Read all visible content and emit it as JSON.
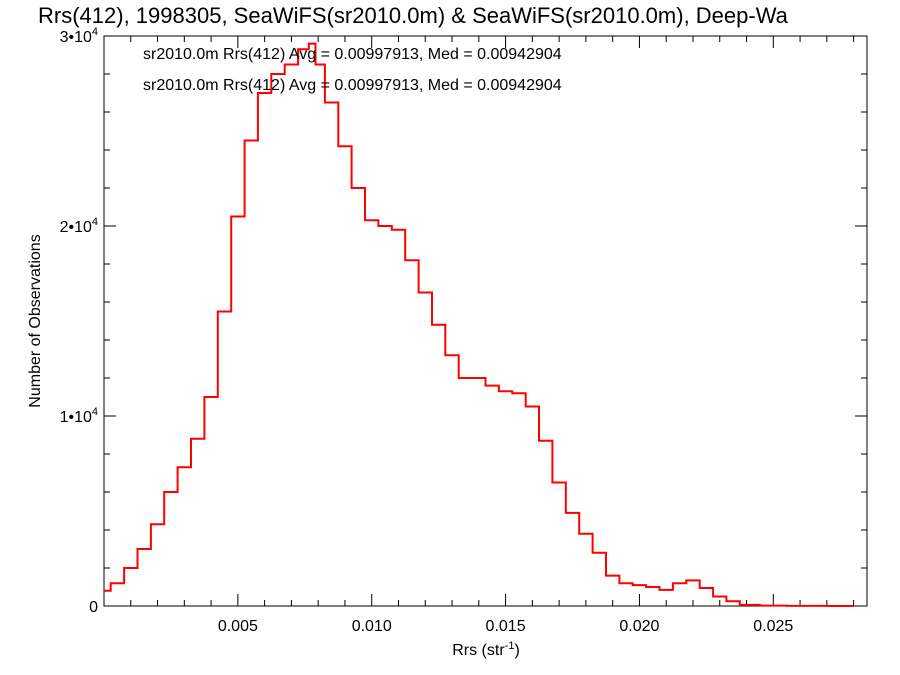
{
  "chart_data": {
    "type": "line",
    "title": "Rrs(412), 1998305, SeaWiFS(sr2010.0m) & SeaWiFS(sr2010.0m), Deep-Wa",
    "xlabel": "Rrs (str",
    "xlabel_sup": "-1",
    "xlabel_end": ")",
    "ylabel": "Number of Observations",
    "xlim": [
      0,
      0.0285
    ],
    "ylim": [
      0,
      30000
    ],
    "xticks": [
      {
        "value": 0.005,
        "label": "0.005"
      },
      {
        "value": 0.01,
        "label": "0.010"
      },
      {
        "value": 0.015,
        "label": "0.015"
      },
      {
        "value": 0.02,
        "label": "0.020"
      },
      {
        "value": 0.025,
        "label": "0.025"
      }
    ],
    "yticks": [
      {
        "value": 0,
        "base": "0",
        "exp": ""
      },
      {
        "value": 10000,
        "base": "1•10",
        "exp": "4"
      },
      {
        "value": 20000,
        "base": "2•10",
        "exp": "4"
      },
      {
        "value": 30000,
        "base": "3•10",
        "exp": "4"
      }
    ],
    "legend": [
      {
        "text": "sr2010.0m Rrs(412) Avg = 0.00997913, Med = 0.00942904",
        "color": "#000000"
      },
      {
        "text": "sr2010.0m Rrs(412) Avg = 0.00997913, Med = 0.00942904",
        "color": "#ff0000"
      }
    ],
    "series": [
      {
        "color": "#ff0000",
        "step": "mid",
        "x": [
          0.0,
          0.0005,
          0.001,
          0.0015,
          0.002,
          0.0025,
          0.003,
          0.0035,
          0.004,
          0.0045,
          0.005,
          0.0055,
          0.006,
          0.0065,
          0.007,
          0.0075,
          0.0078,
          0.008,
          0.0085,
          0.009,
          0.0095,
          0.01,
          0.0105,
          0.011,
          0.0115,
          0.012,
          0.0125,
          0.013,
          0.0135,
          0.014,
          0.0145,
          0.015,
          0.0155,
          0.016,
          0.0165,
          0.017,
          0.0175,
          0.018,
          0.0185,
          0.019,
          0.0195,
          0.02,
          0.0205,
          0.021,
          0.0215,
          0.022,
          0.0225,
          0.023,
          0.0235,
          0.024,
          0.025,
          0.026,
          0.028
        ],
        "y": [
          800,
          1200,
          2000,
          3000,
          4300,
          6000,
          7300,
          8800,
          11000,
          15500,
          20500,
          24500,
          27000,
          28000,
          28500,
          29300,
          29600,
          28500,
          26500,
          24200,
          22000,
          20300,
          20000,
          19800,
          18200,
          16500,
          14800,
          13200,
          12000,
          12000,
          11600,
          11300,
          11200,
          10500,
          8700,
          6500,
          4900,
          3800,
          2800,
          1600,
          1200,
          1100,
          1000,
          850,
          1200,
          1350,
          950,
          500,
          250,
          60,
          20,
          5,
          0
        ]
      }
    ]
  }
}
